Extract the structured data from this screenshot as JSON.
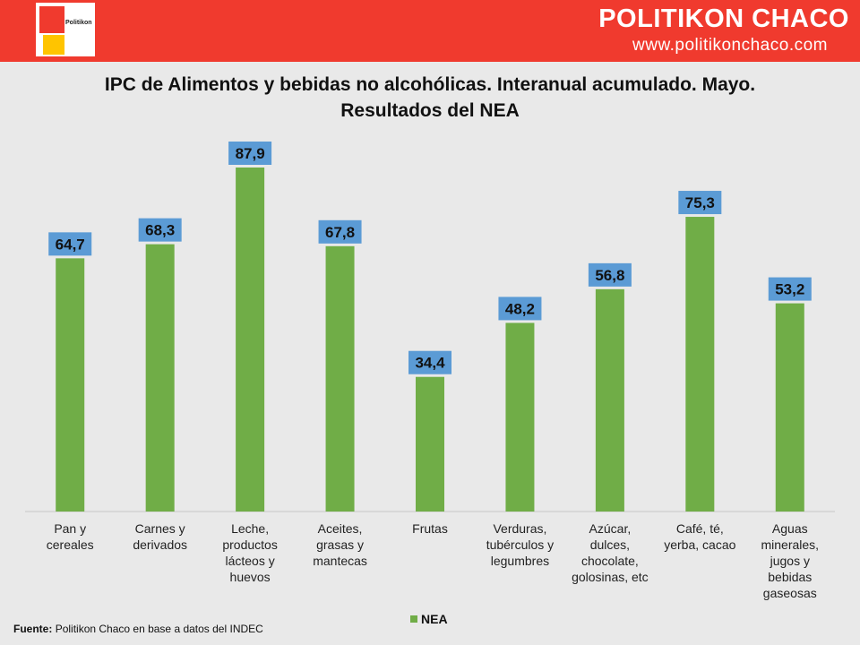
{
  "header": {
    "logo_text": "Politikon",
    "brand": "POLITIKON CHACO",
    "website": "www.politikonchaco.com"
  },
  "colors": {
    "header_red": "#f03a2e",
    "bar_green": "#70ad47",
    "label_blue": "#5b9bd5"
  },
  "chart_data": {
    "type": "bar",
    "title_line1": "IPC de Alimentos y bebidas no alcohólicas. Interanual acumulado. Mayo.",
    "title_line2": "Resultados del NEA",
    "categories": [
      [
        "Pan y",
        "cereales"
      ],
      [
        "Carnes y",
        "derivados"
      ],
      [
        "Leche,",
        "productos",
        "lácteos y",
        "huevos"
      ],
      [
        "Aceites,",
        "grasas y",
        "mantecas"
      ],
      [
        "Frutas"
      ],
      [
        "Verduras,",
        "tubérculos y",
        "legumbres"
      ],
      [
        "Azúcar,",
        "dulces,",
        "chocolate,",
        "golosinas, etc"
      ],
      [
        "Café, té,",
        "yerba, cacao"
      ],
      [
        "Aguas",
        "minerales,",
        "jugos y",
        "bebidas",
        "gaseosas"
      ]
    ],
    "series": [
      {
        "name": "NEA",
        "values": [
          64.7,
          68.3,
          87.9,
          67.8,
          34.4,
          48.2,
          56.8,
          75.3,
          53.2
        ],
        "labels": [
          "64,7",
          "68,3",
          "87,9",
          "67,8",
          "34,4",
          "48,2",
          "56,8",
          "75,3",
          "53,2"
        ]
      }
    ],
    "ylim": [
      0,
      87.9
    ],
    "legend": "bottom-center",
    "grid": false
  },
  "footer": {
    "source_label": "Fuente:",
    "source_text": "Politikon Chaco en base a datos del INDEC"
  }
}
